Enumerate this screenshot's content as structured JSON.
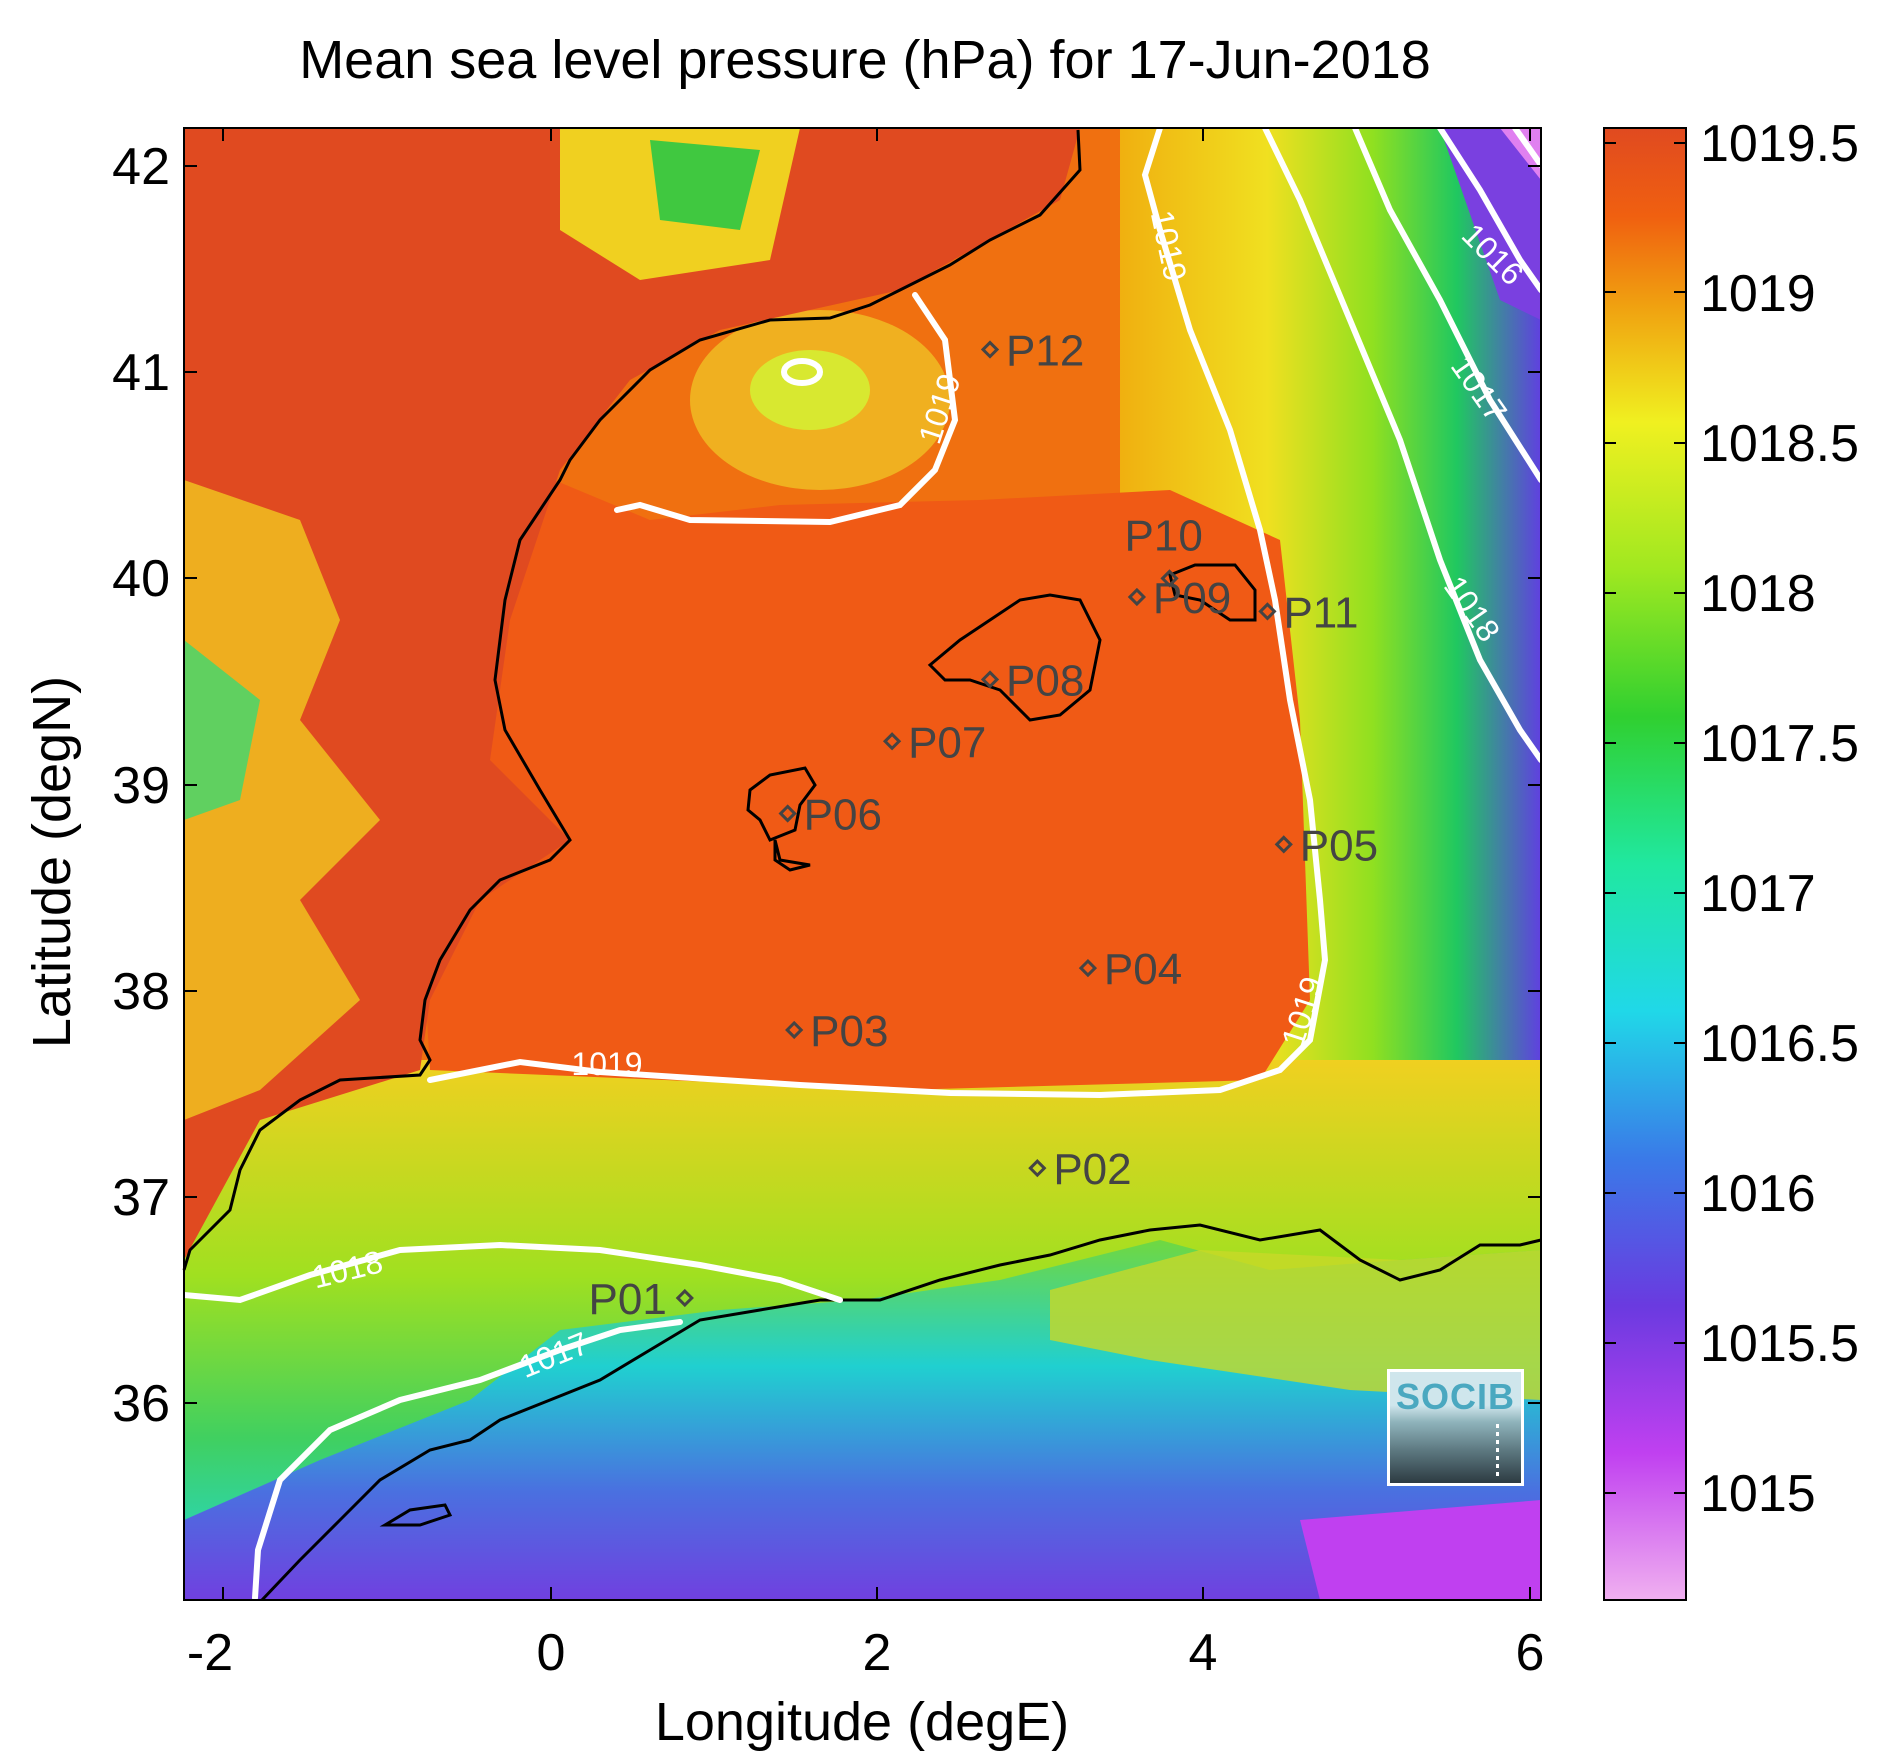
{
  "title": "Mean sea level pressure (hPa) for 17-Jun-2018",
  "xlabel": "Longitude (degE)",
  "ylabel": "Latitude (degN)",
  "x_ticks": [
    "-2",
    "0",
    "2",
    "4",
    "6"
  ],
  "y_ticks": [
    "42",
    "41",
    "40",
    "39",
    "38",
    "37",
    "36"
  ],
  "colorbar": {
    "ticks": [
      "1019.5",
      "1019",
      "1018.5",
      "1018",
      "1017.5",
      "1017",
      "1016.5",
      "1016",
      "1015.5",
      "1015"
    ],
    "colors": [
      "#f0a8f0",
      "#c040f0",
      "#6a3ae0",
      "#3a7ae8",
      "#20d8e8",
      "#20e8a0",
      "#30d030",
      "#a0e820",
      "#f0f020",
      "#f0a010",
      "#f06010",
      "#e04a20"
    ]
  },
  "contours": [
    "1019",
    "1019",
    "1019",
    "1019",
    "1018",
    "1018",
    "1017",
    "1017",
    "1016"
  ],
  "points": [
    {
      "label": "P01",
      "lon": 0.82,
      "lat": 36.51
    },
    {
      "label": "P02",
      "lon": 2.98,
      "lat": 37.14
    },
    {
      "label": "P03",
      "lon": 1.49,
      "lat": 37.81
    },
    {
      "label": "P04",
      "lon": 3.29,
      "lat": 38.11
    },
    {
      "label": "P05",
      "lon": 4.49,
      "lat": 38.71
    },
    {
      "label": "P06",
      "lon": 1.45,
      "lat": 38.86
    },
    {
      "label": "P07",
      "lon": 2.09,
      "lat": 39.21
    },
    {
      "label": "P08",
      "lon": 2.69,
      "lat": 39.51
    },
    {
      "label": "P09",
      "lon": 3.59,
      "lat": 39.91
    },
    {
      "label": "P10",
      "lon": 3.79,
      "lat": 40.0
    },
    {
      "label": "P11",
      "lon": 4.39,
      "lat": 39.84
    },
    {
      "label": "P12",
      "lon": 2.69,
      "lat": 41.11
    }
  ],
  "logo_text": "SOCIB"
}
